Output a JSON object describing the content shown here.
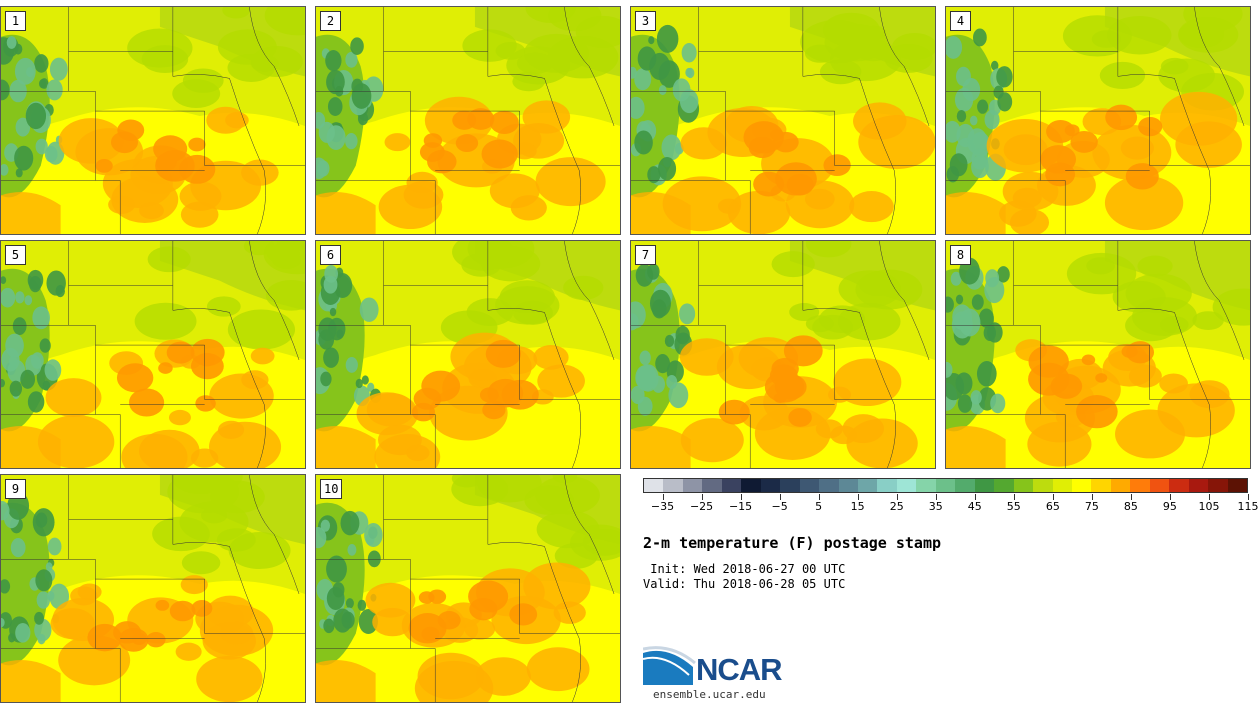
{
  "panels": [
    {
      "label": "1"
    },
    {
      "label": "2"
    },
    {
      "label": "3"
    },
    {
      "label": "4"
    },
    {
      "label": "5"
    },
    {
      "label": "6"
    },
    {
      "label": "7"
    },
    {
      "label": "8"
    },
    {
      "label": "9"
    },
    {
      "label": "10"
    }
  ],
  "colorbar": {
    "colors": [
      "#dfe2e8",
      "#b9bdc8",
      "#8e94a6",
      "#626a82",
      "#3a4260",
      "#0f1a33",
      "#1b2a47",
      "#2b405c",
      "#3e5873",
      "#4f6f86",
      "#5d8896",
      "#6ea6a8",
      "#89cfc6",
      "#9ee5d6",
      "#85d4a9",
      "#6cc08a",
      "#53ab6c",
      "#3f9744",
      "#54a830",
      "#86c41b",
      "#bddc0e",
      "#e0ee05",
      "#ffff00",
      "#ffd500",
      "#ffaa00",
      "#ff7c0a",
      "#f05311",
      "#cc2c11",
      "#a8190f",
      "#861508",
      "#5c1204"
    ],
    "tick_labels": [
      "−35",
      "−25",
      "−15",
      "−5",
      "5",
      "15",
      "25",
      "35",
      "45",
      "55",
      "65",
      "75",
      "85",
      "95",
      "105",
      "115"
    ]
  },
  "title": "2-m temperature (F) postage stamp",
  "init": " Init: Wed 2018-06-27 00 UTC",
  "valid": "Valid: Thu 2018-06-28 05 UTC",
  "logo": {
    "text": "NCAR",
    "url": "ensemble.ucar.edu"
  }
}
